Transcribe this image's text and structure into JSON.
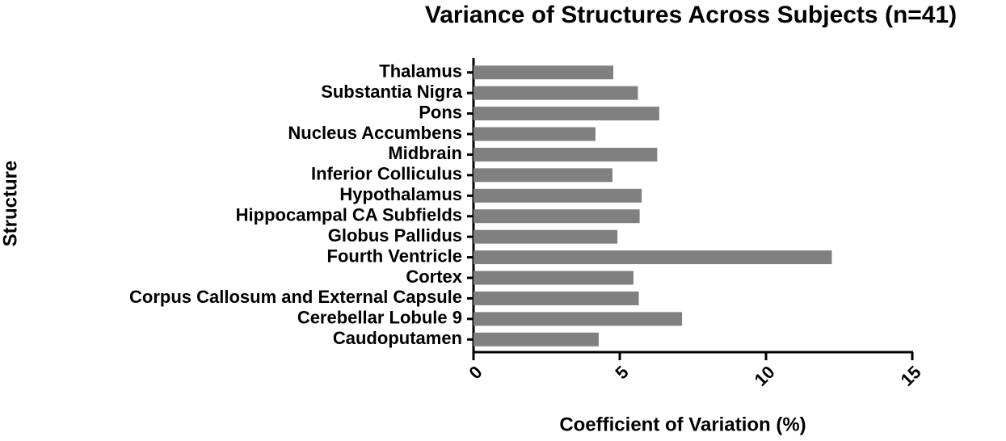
{
  "chart_data": {
    "type": "hbar",
    "title": "Variance of Structures Across Subjects (n=41)",
    "x_label": "Coefficient of Variation (%)",
    "y_label": "Structure",
    "categories": [
      "Caudoputamen",
      "Cerebellar Lobule 9",
      "Corpus Callosum and External Capsule",
      "Cortex",
      "Fourth Ventricle",
      "Globus Pallidus",
      "Hippocampal CA Subfields",
      "Hypothalamus",
      "Inferior Colliculus",
      "Midbrain",
      "Nucleus Accumbens",
      "Pons",
      "Substantia Nigra",
      "Thalamus"
    ],
    "values": [
      4.28,
      7.13,
      5.65,
      5.47,
      12.25,
      4.92,
      5.68,
      5.75,
      4.75,
      6.28,
      4.17,
      6.35,
      5.62,
      4.78
    ],
    "color": "#808080",
    "xlim": [
      0,
      15
    ],
    "xticks": [
      0,
      5,
      10,
      15
    ],
    "grid": false
  }
}
